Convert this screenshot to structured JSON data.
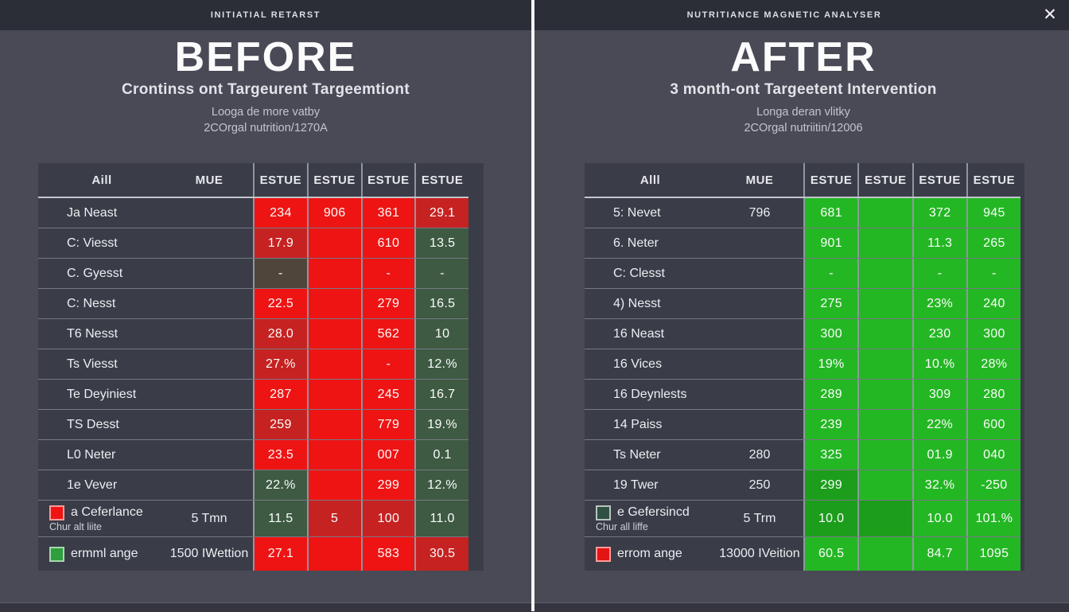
{
  "window": {
    "close_icon": "✕"
  },
  "colors": {
    "red": "#ee1414",
    "red_dark": "#c62222",
    "olive": "#50453b",
    "green_dark": "#3e5a43",
    "green": "#24b724",
    "green_mid": "#1c9e1c",
    "label_bg": "#3a3c47"
  },
  "left": {
    "topbar_title": "INITIATIAL RETARST",
    "title": "BEFORE",
    "subtitle": "Crontinss ont Targeurent Targeemtiont",
    "meta1": "Looga de more vatby",
    "meta2": "2COrgal nutrition/1270A",
    "table": {
      "col1": "Aill",
      "col2": "MUE",
      "value_headers": [
        "ESTUE",
        "ESTUE",
        "ESTUE",
        "ESTUE"
      ],
      "rows": [
        {
          "label": "Ja Neast",
          "mue": "",
          "values": [
            {
              "t": "234",
              "c": "red"
            },
            {
              "t": "906",
              "c": "red"
            },
            {
              "t": "361",
              "c": "red"
            },
            {
              "t": "29.1",
              "c": "red_dark"
            }
          ]
        },
        {
          "label": "C: Viesst",
          "mue": "",
          "values": [
            {
              "t": "17.9",
              "c": "red_dark"
            },
            {
              "t": "",
              "c": "red"
            },
            {
              "t": "610",
              "c": "red"
            },
            {
              "t": "13.5",
              "c": "green_dark"
            }
          ]
        },
        {
          "label": "C. Gyesst",
          "mue": "",
          "values": [
            {
              "t": "-",
              "c": "olive"
            },
            {
              "t": "",
              "c": "red"
            },
            {
              "t": "-",
              "c": "red"
            },
            {
              "t": "-",
              "c": "green_dark"
            }
          ]
        },
        {
          "label": "C: Nesst",
          "mue": "",
          "values": [
            {
              "t": "22.5",
              "c": "red"
            },
            {
              "t": "",
              "c": "red"
            },
            {
              "t": "279",
              "c": "red"
            },
            {
              "t": "16.5",
              "c": "green_dark"
            }
          ]
        },
        {
          "label": "T6 Nesst",
          "mue": "",
          "values": [
            {
              "t": "28.0",
              "c": "red_dark"
            },
            {
              "t": "",
              "c": "red"
            },
            {
              "t": "562",
              "c": "red"
            },
            {
              "t": "10",
              "c": "green_dark"
            }
          ]
        },
        {
          "label": "Ts Viesst",
          "mue": "",
          "values": [
            {
              "t": "27.%",
              "c": "red_dark"
            },
            {
              "t": "",
              "c": "red"
            },
            {
              "t": "-",
              "c": "red"
            },
            {
              "t": "12.%",
              "c": "green_dark"
            }
          ]
        },
        {
          "label": "Te Deyiniest",
          "mue": "",
          "values": [
            {
              "t": "287",
              "c": "red"
            },
            {
              "t": "",
              "c": "red"
            },
            {
              "t": "245",
              "c": "red"
            },
            {
              "t": "16.7",
              "c": "green_dark"
            }
          ]
        },
        {
          "label": "TS Desst",
          "mue": "",
          "values": [
            {
              "t": "259",
              "c": "red_dark"
            },
            {
              "t": "",
              "c": "red"
            },
            {
              "t": "779",
              "c": "red"
            },
            {
              "t": "19.%",
              "c": "green_dark"
            }
          ]
        },
        {
          "label": "L0 Neter",
          "mue": "",
          "values": [
            {
              "t": "23.5",
              "c": "red"
            },
            {
              "t": "",
              "c": "red"
            },
            {
              "t": "007",
              "c": "red"
            },
            {
              "t": "0.1",
              "c": "green_dark"
            }
          ]
        },
        {
          "label": "1e Vever",
          "mue": "",
          "values": [
            {
              "t": "22.%",
              "c": "green_dark"
            },
            {
              "t": "",
              "c": "red"
            },
            {
              "t": "299",
              "c": "red"
            },
            {
              "t": "12.%",
              "c": "green_dark"
            }
          ]
        },
        {
          "label": "a Ceferlance",
          "sublabel": "Chur alt liite",
          "swatch": {
            "fill": "#ee1414",
            "border": "#ff9a9a"
          },
          "mue": "5 Tmn",
          "values": [
            {
              "t": "11.5",
              "c": "green_dark"
            },
            {
              "t": "5",
              "c": "red_dark"
            },
            {
              "t": "100",
              "c": "red_dark"
            },
            {
              "t": "11.0",
              "c": "green_dark"
            }
          ]
        },
        {
          "label": "ermml ange",
          "swatch": {
            "fill": "#2f9e3e",
            "border": "#a8d8b0"
          },
          "mue": "1500 IWettion",
          "values": [
            {
              "t": "27.1",
              "c": "red"
            },
            {
              "t": "",
              "c": "red"
            },
            {
              "t": "583",
              "c": "red"
            },
            {
              "t": "30.5",
              "c": "red_dark"
            }
          ]
        }
      ]
    }
  },
  "right": {
    "topbar_title": "NUTRITIANCE MAGNETIC ANALYSER",
    "title": "AFTER",
    "subtitle": "3 month-ont Targeetent Intervention",
    "meta1": "Longa deran vlitky",
    "meta2": "2COrgal nutriitin/12006",
    "table": {
      "col1": "Alll",
      "col2": "MUE",
      "value_headers": [
        "ESTUE",
        "ESTUE",
        "ESTUE",
        "ESTUE"
      ],
      "rows": [
        {
          "label": "5: Nevet",
          "mue": "796",
          "values": [
            {
              "t": "681",
              "c": "green"
            },
            {
              "t": "",
              "c": "green"
            },
            {
              "t": "372",
              "c": "green"
            },
            {
              "t": "945",
              "c": "green"
            }
          ]
        },
        {
          "label": "6. Neter",
          "mue": "",
          "values": [
            {
              "t": "901",
              "c": "green"
            },
            {
              "t": "",
              "c": "green"
            },
            {
              "t": "11.3",
              "c": "green"
            },
            {
              "t": "265",
              "c": "green"
            }
          ]
        },
        {
          "label": "C: Clesst",
          "mue": "",
          "values": [
            {
              "t": "-",
              "c": "green"
            },
            {
              "t": "",
              "c": "green"
            },
            {
              "t": "-",
              "c": "green"
            },
            {
              "t": "-",
              "c": "green"
            }
          ]
        },
        {
          "label": "4) Nesst",
          "mue": "",
          "values": [
            {
              "t": "275",
              "c": "green"
            },
            {
              "t": "",
              "c": "green"
            },
            {
              "t": "23%",
              "c": "green"
            },
            {
              "t": "240",
              "c": "green"
            }
          ]
        },
        {
          "label": "16 Neast",
          "mue": "",
          "values": [
            {
              "t": "300",
              "c": "green"
            },
            {
              "t": "",
              "c": "green"
            },
            {
              "t": "230",
              "c": "green"
            },
            {
              "t": "300",
              "c": "green"
            }
          ]
        },
        {
          "label": "16 Vices",
          "mue": "",
          "values": [
            {
              "t": "19%",
              "c": "green"
            },
            {
              "t": "",
              "c": "green"
            },
            {
              "t": "10.%",
              "c": "green"
            },
            {
              "t": "28%",
              "c": "green"
            }
          ]
        },
        {
          "label": "16 Deynlests",
          "mue": "",
          "values": [
            {
              "t": "289",
              "c": "green"
            },
            {
              "t": "",
              "c": "green"
            },
            {
              "t": "309",
              "c": "green"
            },
            {
              "t": "280",
              "c": "green"
            }
          ]
        },
        {
          "label": "14 Paiss",
          "mue": "",
          "values": [
            {
              "t": "239",
              "c": "green"
            },
            {
              "t": "",
              "c": "green"
            },
            {
              "t": "22%",
              "c": "green"
            },
            {
              "t": "600",
              "c": "green"
            }
          ]
        },
        {
          "label": "Ts Neter",
          "mue": "280",
          "values": [
            {
              "t": "325",
              "c": "green"
            },
            {
              "t": "",
              "c": "green"
            },
            {
              "t": "01.9",
              "c": "green"
            },
            {
              "t": "040",
              "c": "green"
            }
          ]
        },
        {
          "label": "19 Twer",
          "mue": "250",
          "values": [
            {
              "t": "299",
              "c": "green_mid"
            },
            {
              "t": "",
              "c": "green"
            },
            {
              "t": "32.%",
              "c": "green"
            },
            {
              "t": "-250",
              "c": "green"
            }
          ]
        },
        {
          "label": "e Gefersincd",
          "sublabel": "Chur all liffe",
          "swatch": {
            "fill": "#2f5043",
            "border": "#b9c4bf"
          },
          "mue": "5 Trm",
          "values": [
            {
              "t": "10.0",
              "c": "green_mid"
            },
            {
              "t": "",
              "c": "green_mid"
            },
            {
              "t": "10.0",
              "c": "green"
            },
            {
              "t": "101.%",
              "c": "green"
            }
          ]
        },
        {
          "label": "errom ange",
          "swatch": {
            "fill": "#e31515",
            "border": "#ff9a9a"
          },
          "mue": "13000 IVeition",
          "values": [
            {
              "t": "60.5",
              "c": "green"
            },
            {
              "t": "",
              "c": "green"
            },
            {
              "t": "84.7",
              "c": "green"
            },
            {
              "t": "1095",
              "c": "green"
            }
          ]
        }
      ]
    }
  }
}
